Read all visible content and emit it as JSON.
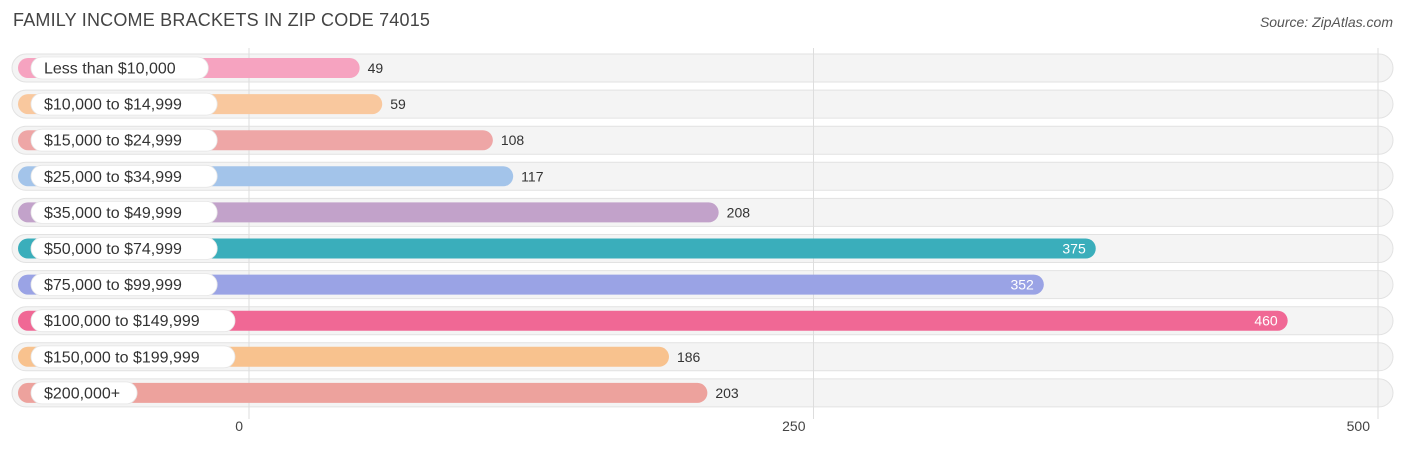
{
  "title": "FAMILY INCOME BRACKETS IN ZIP CODE 74015",
  "source": "Source: ZipAtlas.com",
  "chart_data": {
    "type": "bar",
    "orientation": "horizontal",
    "categories": [
      "Less than $10,000",
      "$10,000 to $14,999",
      "$15,000 to $24,999",
      "$25,000 to $34,999",
      "$35,000 to $49,999",
      "$50,000 to $74,999",
      "$75,000 to $99,999",
      "$100,000 to $149,999",
      "$150,000 to $199,999",
      "$200,000+"
    ],
    "values": [
      49,
      59,
      108,
      117,
      208,
      375,
      352,
      460,
      186,
      203
    ],
    "colors": [
      "#f6a3c0",
      "#f9c89e",
      "#eea6a6",
      "#a3c4ea",
      "#c2a2ca",
      "#3aaebb",
      "#9aa3e5",
      "#f06895",
      "#f8c28e",
      "#eda29d"
    ],
    "xlim": [
      0,
      500
    ],
    "xticks": [
      0,
      250,
      500
    ],
    "grid": true
  }
}
